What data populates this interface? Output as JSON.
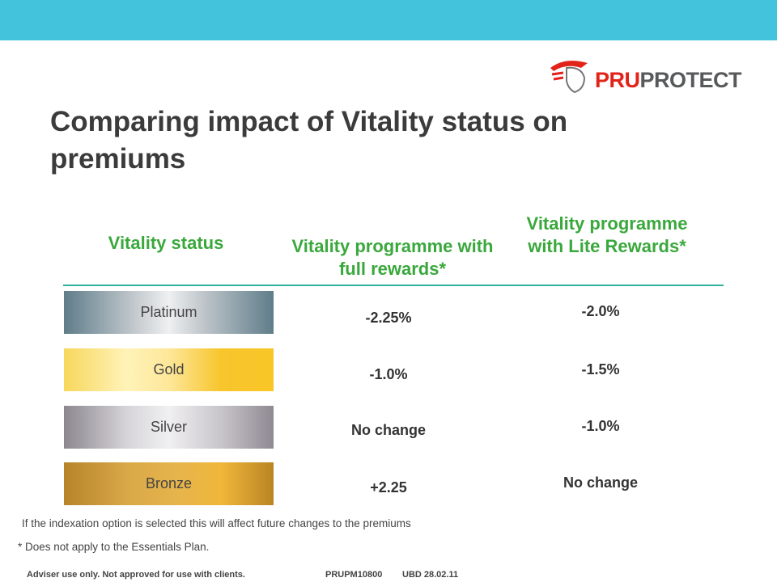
{
  "brand": {
    "part1": "PRU",
    "part2": "PROTECT"
  },
  "title": "Comparing impact of Vitality status on premiums",
  "table": {
    "headers": [
      "Vitality status",
      "Vitality programme with full rewards*",
      "Vitality programme with Lite Rewards*"
    ],
    "rows": [
      [
        "Platinum",
        "-2.25%",
        "-2.0%"
      ],
      [
        "Gold",
        "-1.0%",
        "-1.5%"
      ],
      [
        "Silver",
        "No change",
        "-1.0%"
      ],
      [
        "Bronze",
        "+2.25",
        "No change"
      ]
    ]
  },
  "notes": [
    "If the indexation option is selected this will affect future changes to the premiums",
    "* Does not apply to the Essentials Plan."
  ],
  "footer": {
    "disclaimer": "Adviser use only. Not approved for use with clients.",
    "code": "PRUPM10800",
    "date": "UBD 28.02.11"
  }
}
